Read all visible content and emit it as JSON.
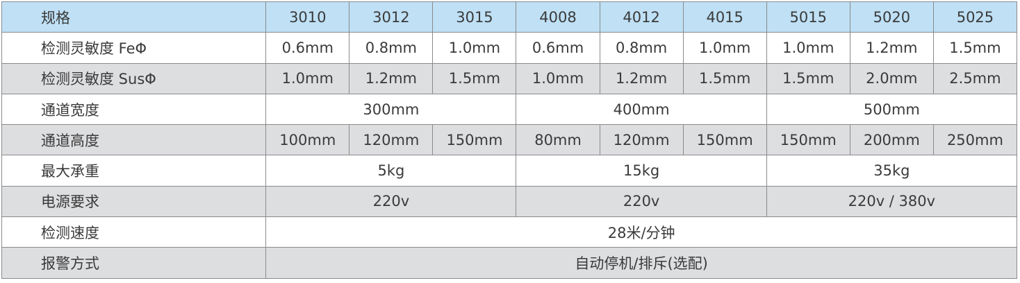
{
  "header": {
    "label": "规格",
    "models": [
      "3010",
      "3012",
      "3015",
      "4008",
      "4012",
      "4015",
      "5015",
      "5020",
      "5025"
    ]
  },
  "rows": [
    {
      "label": "检测灵敏度 FeΦ",
      "cells": [
        {
          "text": "0.6mm",
          "span": 1
        },
        {
          "text": "0.8mm",
          "span": 1
        },
        {
          "text": "1.0mm",
          "span": 1
        },
        {
          "text": "0.6mm",
          "span": 1
        },
        {
          "text": "0.8mm",
          "span": 1
        },
        {
          "text": "1.0mm",
          "span": 1
        },
        {
          "text": "1.0mm",
          "span": 1
        },
        {
          "text": "1.2mm",
          "span": 1
        },
        {
          "text": "1.5mm",
          "span": 1
        }
      ]
    },
    {
      "label": "检测灵敏度 SusΦ",
      "cells": [
        {
          "text": "1.0mm",
          "span": 1
        },
        {
          "text": "1.2mm",
          "span": 1
        },
        {
          "text": "1.5mm",
          "span": 1
        },
        {
          "text": "1.0mm",
          "span": 1
        },
        {
          "text": "1.2mm",
          "span": 1
        },
        {
          "text": "1.5mm",
          "span": 1
        },
        {
          "text": "1.5mm",
          "span": 1
        },
        {
          "text": "2.0mm",
          "span": 1
        },
        {
          "text": "2.5mm",
          "span": 1
        }
      ]
    },
    {
      "label": "通道宽度",
      "cells": [
        {
          "text": "300mm",
          "span": 3
        },
        {
          "text": "400mm",
          "span": 3
        },
        {
          "text": "500mm",
          "span": 3
        }
      ]
    },
    {
      "label": "通道高度",
      "cells": [
        {
          "text": "100mm",
          "span": 1
        },
        {
          "text": "120mm",
          "span": 1
        },
        {
          "text": "150mm",
          "span": 1
        },
        {
          "text": "80mm",
          "span": 1
        },
        {
          "text": "120mm",
          "span": 1
        },
        {
          "text": "150mm",
          "span": 1
        },
        {
          "text": "150mm",
          "span": 1
        },
        {
          "text": "200mm",
          "span": 1
        },
        {
          "text": "250mm",
          "span": 1
        }
      ]
    },
    {
      "label": "最大承重",
      "cells": [
        {
          "text": "5kg",
          "span": 3
        },
        {
          "text": "15kg",
          "span": 3
        },
        {
          "text": "35kg",
          "span": 3
        }
      ]
    },
    {
      "label": "电源要求",
      "cells": [
        {
          "text": "220v",
          "span": 3
        },
        {
          "text": "220v",
          "span": 3
        },
        {
          "text": "220v / 380v",
          "span": 3
        }
      ]
    },
    {
      "label": "检测速度",
      "cells": [
        {
          "text": "28米/分钟",
          "span": 9
        }
      ]
    },
    {
      "label": "报警方式",
      "cells": [
        {
          "text": "自动停机/排斥(选配)",
          "span": 9
        }
      ]
    }
  ],
  "colors": {
    "header_bg": "#bfe0f5",
    "stripe_bg": "#dddee0",
    "border": "#8a8a8a",
    "text": "#3a3a3a"
  }
}
